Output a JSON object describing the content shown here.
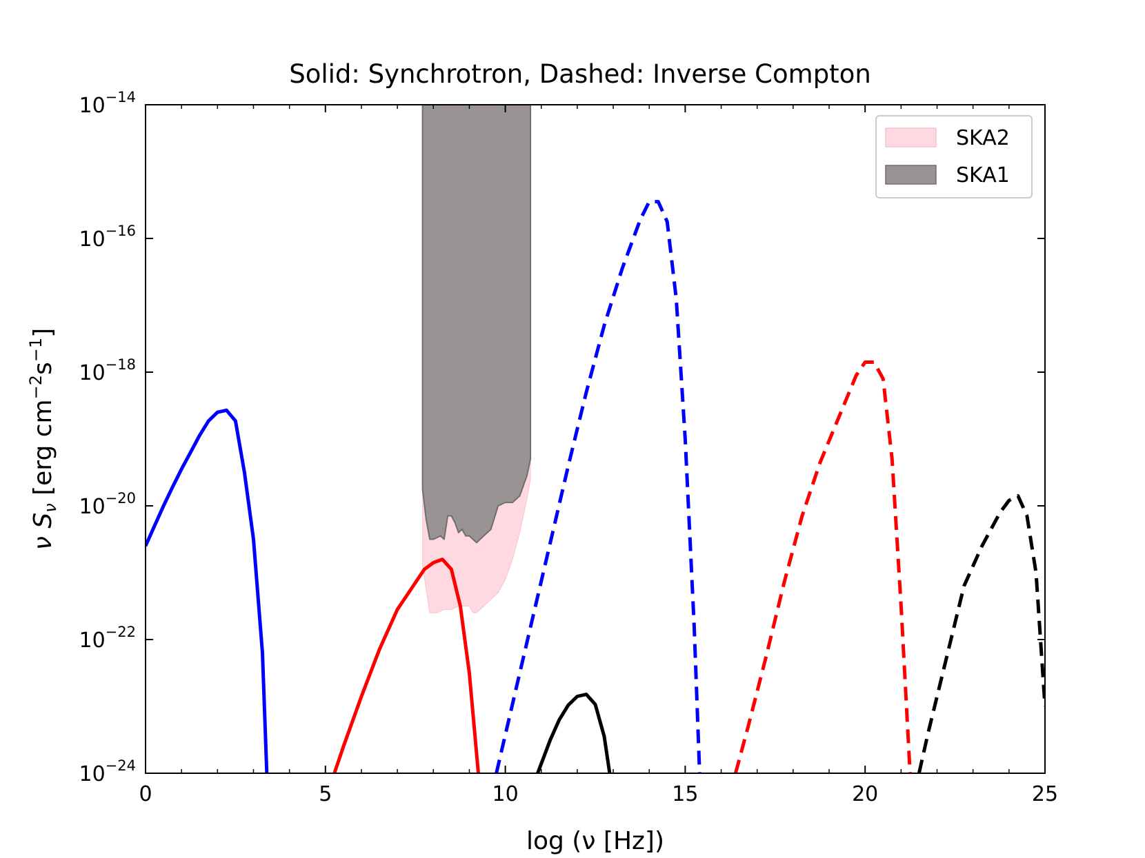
{
  "chart_data": {
    "type": "line",
    "title": "Solid: Synchrotron, Dashed: Inverse Compton",
    "xlabel": "log (ν [Hz])",
    "ylabel_parts": {
      "nu": "ν",
      "S": "S",
      "sub": "ν",
      "bracket_open": " [erg cm",
      "exp1": "−2",
      "s": "s",
      "exp2": "−1",
      "bracket_close": "]"
    },
    "xlim": [
      0,
      25
    ],
    "ylim_log10": [
      -24,
      -14
    ],
    "yscale": "log",
    "x_ticks": [
      {
        "value": 0,
        "label": "0"
      },
      {
        "value": 5,
        "label": "5"
      },
      {
        "value": 10,
        "label": "10"
      },
      {
        "value": 15,
        "label": "15"
      },
      {
        "value": 20,
        "label": "20"
      },
      {
        "value": 25,
        "label": "25"
      }
    ],
    "y_ticks": [
      {
        "exp": -14,
        "base": "10",
        "sup": "−14"
      },
      {
        "exp": -16,
        "base": "10",
        "sup": "−16"
      },
      {
        "exp": -18,
        "base": "10",
        "sup": "−18"
      },
      {
        "exp": -20,
        "base": "10",
        "sup": "−20"
      },
      {
        "exp": -22,
        "base": "10",
        "sup": "−22"
      },
      {
        "exp": -24,
        "base": "10",
        "sup": "−24"
      }
    ],
    "legend": {
      "position": "upper right",
      "entries": [
        {
          "label": "SKA2",
          "color": "#ffd9e0",
          "edge": "#f7c4cf"
        },
        {
          "label": "SKA1",
          "color": "#999393",
          "edge": "#6e6e6e"
        }
      ]
    },
    "bands": [
      {
        "name": "SKA2",
        "color": "#ffd9e0",
        "x": [
          7.7,
          7.9,
          8.1,
          8.3,
          8.5,
          8.7,
          8.9,
          9.0,
          9.1,
          9.2,
          9.4,
          9.6,
          9.8,
          10.0,
          10.2,
          10.4,
          10.6,
          10.7
        ],
        "lower_log10": [
          -20.9,
          -21.6,
          -21.6,
          -21.55,
          -21.55,
          -21.5,
          -21.5,
          -21.5,
          -21.6,
          -21.6,
          -21.5,
          -21.4,
          -21.3,
          -21.1,
          -20.8,
          -20.4,
          -19.9,
          -19.6
        ],
        "upper_log10": [
          -14,
          -14,
          -14,
          -14,
          -14,
          -14,
          -14,
          -14,
          -14,
          -14,
          -14,
          -14,
          -14,
          -14,
          -14,
          -14,
          -14,
          -14
        ]
      },
      {
        "name": "SKA1",
        "color": "#999393",
        "x": [
          7.7,
          7.8,
          7.9,
          8.0,
          8.2,
          8.3,
          8.4,
          8.5,
          8.6,
          8.7,
          8.8,
          8.9,
          9.0,
          9.1,
          9.2,
          9.4,
          9.6,
          9.8,
          10.0,
          10.2,
          10.4,
          10.6,
          10.7
        ],
        "lower_log10": [
          -19.75,
          -20.2,
          -20.5,
          -20.5,
          -20.45,
          -20.5,
          -20.15,
          -20.15,
          -20.25,
          -20.4,
          -20.35,
          -20.45,
          -20.45,
          -20.5,
          -20.55,
          -20.45,
          -20.35,
          -20.0,
          -19.95,
          -19.95,
          -19.85,
          -19.55,
          -19.3
        ],
        "upper_log10": [
          -14,
          -14,
          -14,
          -14,
          -14,
          -14,
          -14,
          -14,
          -14,
          -14,
          -14,
          -14,
          -14,
          -14,
          -14,
          -14,
          -14,
          -14,
          -14,
          -14,
          -14,
          -14,
          -14
        ]
      }
    ],
    "series": [
      {
        "name": "blue-synchrotron",
        "process": "Synchrotron",
        "color": "#0000ff",
        "dashed": false,
        "x": [
          0,
          0.25,
          0.5,
          0.75,
          1.0,
          1.25,
          1.5,
          1.75,
          2.0,
          2.25,
          2.5,
          2.75,
          3.0,
          3.25,
          3.37
        ],
        "y_log10": [
          -20.6,
          -20.3,
          -20.0,
          -19.72,
          -19.45,
          -19.2,
          -18.95,
          -18.73,
          -18.6,
          -18.57,
          -18.73,
          -19.5,
          -20.5,
          -22.2,
          -24.0
        ]
      },
      {
        "name": "red-synchrotron",
        "process": "Synchrotron",
        "color": "#ff0000",
        "dashed": false,
        "x": [
          5.25,
          5.5,
          6.0,
          6.5,
          7.0,
          7.5,
          7.75,
          8.0,
          8.25,
          8.5,
          8.75,
          9.0,
          9.25
        ],
        "y_log10": [
          -24.0,
          -23.6,
          -22.85,
          -22.15,
          -21.55,
          -21.15,
          -20.95,
          -20.85,
          -20.8,
          -20.95,
          -21.5,
          -22.5,
          -24.0
        ]
      },
      {
        "name": "black-synchrotron",
        "process": "Synchrotron",
        "color": "#000000",
        "dashed": false,
        "x": [
          10.9,
          11.25,
          11.5,
          11.75,
          12.0,
          12.25,
          12.5,
          12.75,
          12.9
        ],
        "y_log10": [
          -24.0,
          -23.5,
          -23.2,
          -22.98,
          -22.85,
          -22.82,
          -22.97,
          -23.45,
          -24.0
        ]
      },
      {
        "name": "blue-inverse-compton",
        "process": "Inverse Compton",
        "color": "#0000ff",
        "dashed": true,
        "x": [
          9.75,
          10.25,
          10.75,
          11.25,
          11.75,
          12.25,
          12.75,
          13.25,
          13.75,
          14.0,
          14.25,
          14.5,
          14.75,
          15.0,
          15.25,
          15.4
        ],
        "y_log10": [
          -24.0,
          -22.85,
          -21.7,
          -20.55,
          -19.4,
          -18.3,
          -17.3,
          -16.45,
          -15.72,
          -15.45,
          -15.45,
          -15.75,
          -16.9,
          -19.0,
          -21.8,
          -24.0
        ]
      },
      {
        "name": "red-inverse-compton",
        "process": "Inverse Compton",
        "color": "#ff0000",
        "dashed": true,
        "x": [
          16.4,
          16.75,
          17.25,
          17.75,
          18.25,
          18.75,
          19.25,
          19.75,
          20.0,
          20.25,
          20.5,
          20.75,
          21.0,
          21.25
        ],
        "y_log10": [
          -24.0,
          -23.3,
          -22.25,
          -21.15,
          -20.15,
          -19.35,
          -18.7,
          -18.05,
          -17.85,
          -17.85,
          -18.1,
          -19.3,
          -21.5,
          -24.0
        ]
      },
      {
        "name": "black-inverse-compton",
        "process": "Inverse Compton",
        "color": "#000000",
        "dashed": true,
        "x": [
          21.5,
          21.75,
          22.25,
          22.75,
          23.25,
          23.75,
          24.0,
          24.25,
          24.5,
          24.75,
          25.0
        ],
        "y_log10": [
          -24.0,
          -23.4,
          -22.3,
          -21.2,
          -20.6,
          -20.1,
          -19.92,
          -19.85,
          -20.15,
          -21.0,
          -23.0
        ]
      }
    ]
  }
}
